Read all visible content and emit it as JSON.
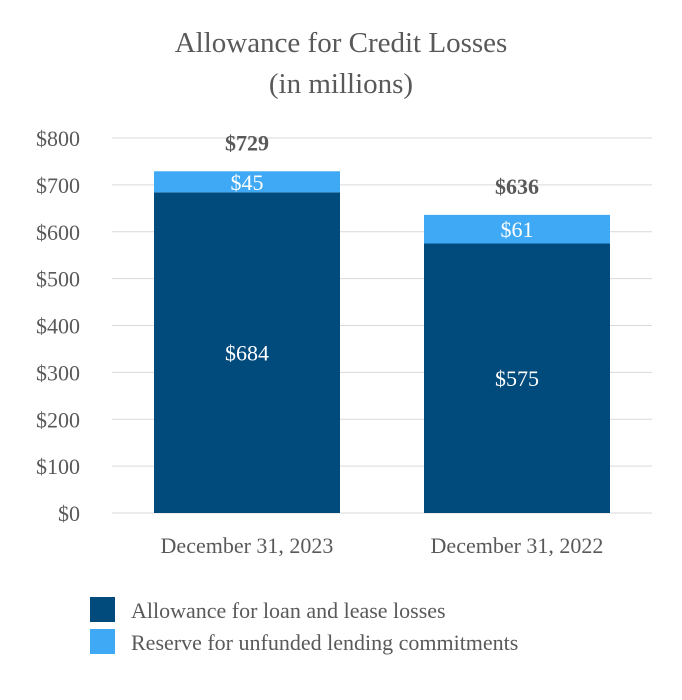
{
  "chart_data": {
    "type": "bar",
    "stacked": true,
    "title": "Allowance for Credit Losses",
    "subtitle": "(in millions)",
    "categories": [
      "December 31, 2023",
      "December 31, 2022"
    ],
    "series": [
      {
        "name": "Allowance for loan and lease losses",
        "values": [
          684,
          575
        ],
        "labels": [
          "$684",
          "$575"
        ],
        "color": "#004a7c"
      },
      {
        "name": "Reserve for unfunded lending commitments",
        "values": [
          45,
          61
        ],
        "labels": [
          "$45",
          "$61"
        ],
        "color": "#3fa9f5"
      }
    ],
    "totals": [
      "$729",
      "$636"
    ],
    "ylim": [
      0,
      800
    ],
    "yticks": [
      0,
      100,
      200,
      300,
      400,
      500,
      600,
      700,
      800
    ],
    "ytick_labels": [
      "$0",
      "$100",
      "$200",
      "$300",
      "$400",
      "$500",
      "$600",
      "$700",
      "$800"
    ],
    "grid": true,
    "legend_position": "bottom-left"
  }
}
